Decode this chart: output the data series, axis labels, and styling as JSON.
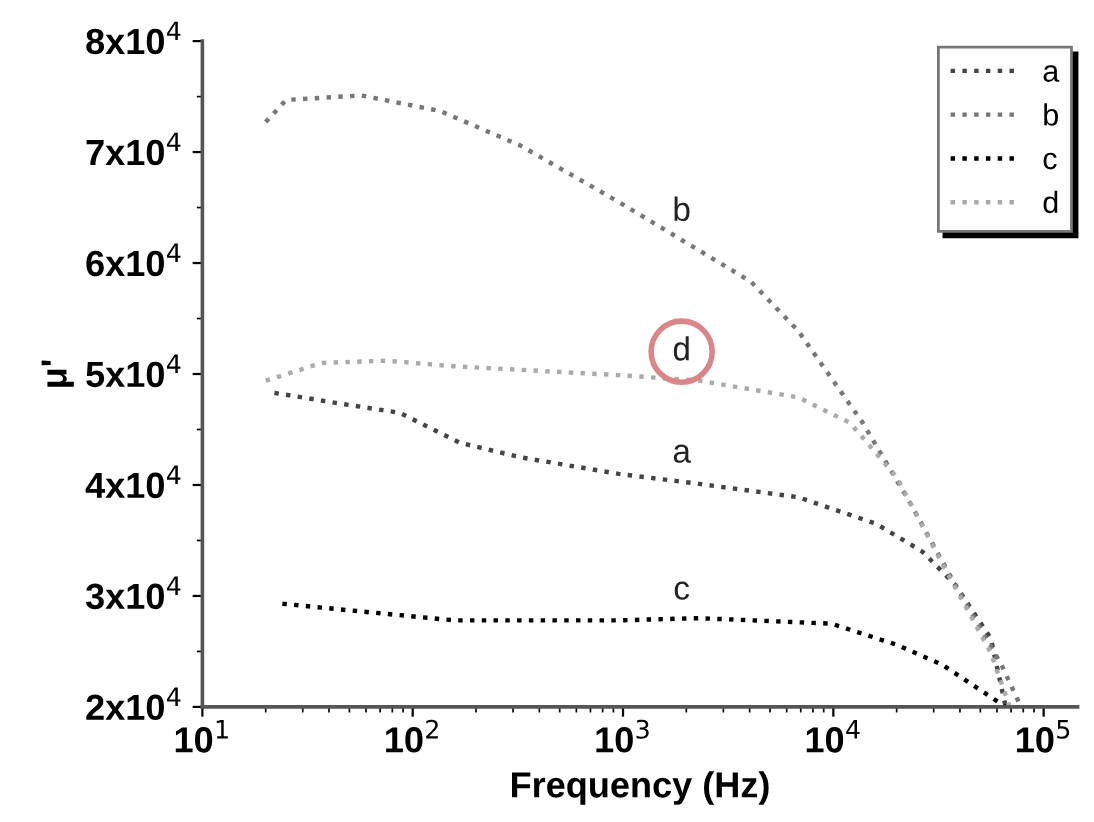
{
  "chart_data": {
    "type": "line",
    "xlabel": "Frequency (Hz)",
    "ylabel": "μ'",
    "log": "x",
    "xlim": [
      10,
      145000
    ],
    "ylim": [
      20000,
      80000
    ],
    "xticks": [
      {
        "value": 10,
        "label": "10$^{1}$"
      },
      {
        "value": 100,
        "label": "10$^{2}$"
      },
      {
        "value": 1000,
        "label": "10$^{3}$"
      },
      {
        "value": 10000,
        "label": "10$^{4}$"
      },
      {
        "value": 100000,
        "label": "10$^{5}$"
      }
    ],
    "yticks": [
      {
        "value": 20000,
        "label": "2x10$^{4}$"
      },
      {
        "value": 30000,
        "label": "3x10$^{4}$"
      },
      {
        "value": 40000,
        "label": "4x10$^{4}$"
      },
      {
        "value": 50000,
        "label": "5x10$^{4}$"
      },
      {
        "value": 60000,
        "label": "6x10$^{4}$"
      },
      {
        "value": 70000,
        "label": "7x10$^{4}$"
      },
      {
        "value": 80000,
        "label": "8x10$^{4}$"
      }
    ],
    "grid": false,
    "legend": "top right",
    "line_style": "dotted",
    "marker": "none",
    "series": [
      {
        "name": "a",
        "color": "#444444",
        "x": [
          22,
          43,
          87,
          168,
          324,
          955,
          2300,
          6800,
          16000,
          26500,
          38000,
          56000,
          66000
        ],
        "values": [
          48300,
          47400,
          46500,
          43800,
          42500,
          41000,
          40100,
          38900,
          36500,
          34000,
          31000,
          26200,
          20000
        ]
      },
      {
        "name": "b",
        "color": "#777777",
        "x": [
          20,
          25,
          57,
          135,
          324,
          955,
          4070,
          6800,
          13800,
          23300,
          38000,
          63000,
          78000
        ],
        "values": [
          72700,
          74700,
          75100,
          73700,
          70600,
          65500,
          58300,
          53900,
          45600,
          38300,
          31000,
          23800,
          20000
        ]
      },
      {
        "name": "c",
        "color": "#000000",
        "x": [
          24,
          57,
          157,
          955,
          2300,
          9800,
          20000,
          33000,
          66000
        ],
        "values": [
          29300,
          28600,
          27800,
          27800,
          28000,
          27500,
          25600,
          23800,
          20000
        ]
      },
      {
        "name": "d",
        "color": "#aaaaaa",
        "x": [
          20,
          37,
          75,
          157,
          955,
          2300,
          6800,
          12000,
          20000,
          33000,
          56000,
          69000
        ],
        "values": [
          49400,
          51000,
          51200,
          50700,
          49900,
          49400,
          47900,
          45600,
          40700,
          32900,
          24900,
          20000
        ]
      }
    ]
  }
}
